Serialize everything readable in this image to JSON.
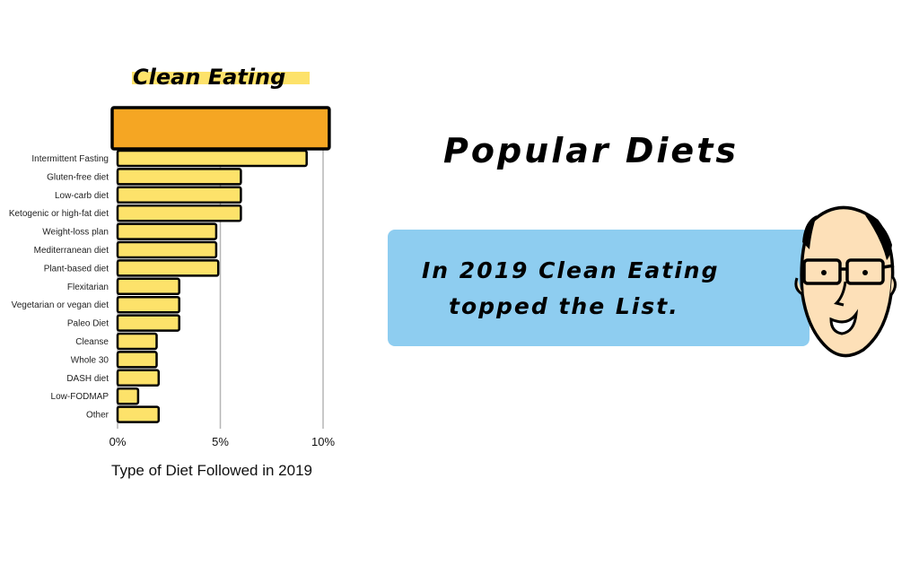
{
  "heading": "Popular Diets",
  "callout": {
    "line1": "In 2019 Clean Eating",
    "line2": "topped the List."
  },
  "colors": {
    "highlight_bar": "#f5a623",
    "bar": "#fde26a",
    "callout_bg": "#8ecdf0",
    "title_highlight": "#fde26a"
  },
  "icons": {
    "character": "bald-man-with-glasses-face-icon"
  },
  "chart_data": {
    "type": "bar",
    "orientation": "horizontal",
    "title": "Clean Eating",
    "xlabel": "Type of Diet Followed in 2019",
    "xlim": [
      0,
      10
    ],
    "xticks": [
      "0%",
      "5%",
      "10%"
    ],
    "grid": true,
    "categories": [
      "Clean Eating",
      "Intermittent Fasting",
      "Gluten-free diet",
      "Low-carb diet",
      "Ketogenic or high-fat diet",
      "Weight-loss plan",
      "Mediterranean diet",
      "Plant-based diet",
      "Flexitarian",
      "Vegetarian or vegan diet",
      "Paleo Diet",
      "Cleanse",
      "Whole 30",
      "DASH diet",
      "Low-FODMAP",
      "Other"
    ],
    "category_labels": [
      "",
      "Intermittent Fasting",
      "Gluten-free diet",
      "Low-carb diet",
      "Ketogenic or high-fat diet",
      "Weight-loss plan",
      "Mediterranean diet",
      "Plant-based diet",
      "Flexitarian",
      "Vegetarian or vegan diet",
      "Paleo Diet",
      "Cleanse",
      "Whole 30",
      "DASH diet",
      "Low-FODMAP",
      "Other"
    ],
    "values": [
      10.3,
      9.2,
      6,
      6,
      6,
      4.8,
      4.8,
      4.9,
      3,
      3,
      3,
      1.9,
      1.9,
      2,
      1,
      2
    ],
    "highlight_index": 0
  }
}
